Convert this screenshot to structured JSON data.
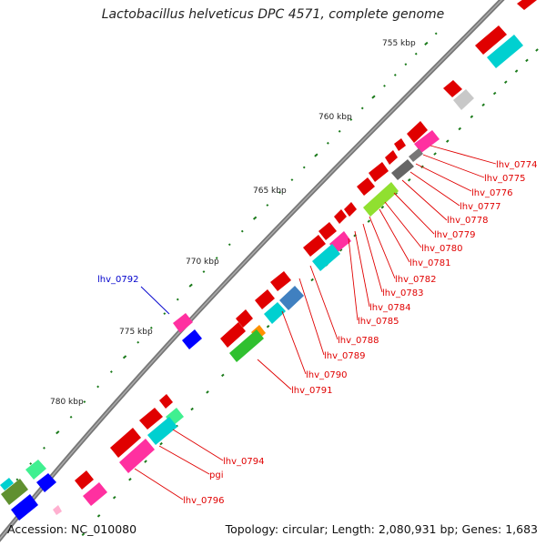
{
  "title": "Lactobacillus helveticus DPC 4571, complete genome",
  "footer": {
    "accession": "Accession: NC_010080",
    "summary": "Topology: circular; Length: 2,080,931 bp; Genes: 1,683"
  },
  "kbp_marks": [
    "755 kbp",
    "760 kbp",
    "765 kbp",
    "770 kbp",
    "775 kbp",
    "780 kbp"
  ],
  "gene_labels": [
    {
      "text": "lhv_0774",
      "color": "#e00000"
    },
    {
      "text": "lhv_0775",
      "color": "#e00000"
    },
    {
      "text": "lhv_0776",
      "color": "#e00000"
    },
    {
      "text": "lhv_0777",
      "color": "#e00000"
    },
    {
      "text": "lhv_0778",
      "color": "#e00000"
    },
    {
      "text": "lhv_0779",
      "color": "#e00000"
    },
    {
      "text": "lhv_0780",
      "color": "#e00000"
    },
    {
      "text": "lhv_0781",
      "color": "#e00000"
    },
    {
      "text": "lhv_0782",
      "color": "#e00000"
    },
    {
      "text": "lhv_0783",
      "color": "#e00000"
    },
    {
      "text": "lhv_0784",
      "color": "#e00000"
    },
    {
      "text": "lhv_0785",
      "color": "#e00000"
    },
    {
      "text": "lhv_0788",
      "color": "#e00000"
    },
    {
      "text": "lhv_0789",
      "color": "#e00000"
    },
    {
      "text": "lhv_0790",
      "color": "#e00000"
    },
    {
      "text": "lhv_0791",
      "color": "#e00000"
    },
    {
      "text": "lhv_0792",
      "color": "#0000cc"
    },
    {
      "text": "lhv_0794",
      "color": "#e00000"
    },
    {
      "text": "pgi",
      "color": "#e00000"
    },
    {
      "text": "lhv_0796",
      "color": "#e00000"
    }
  ]
}
